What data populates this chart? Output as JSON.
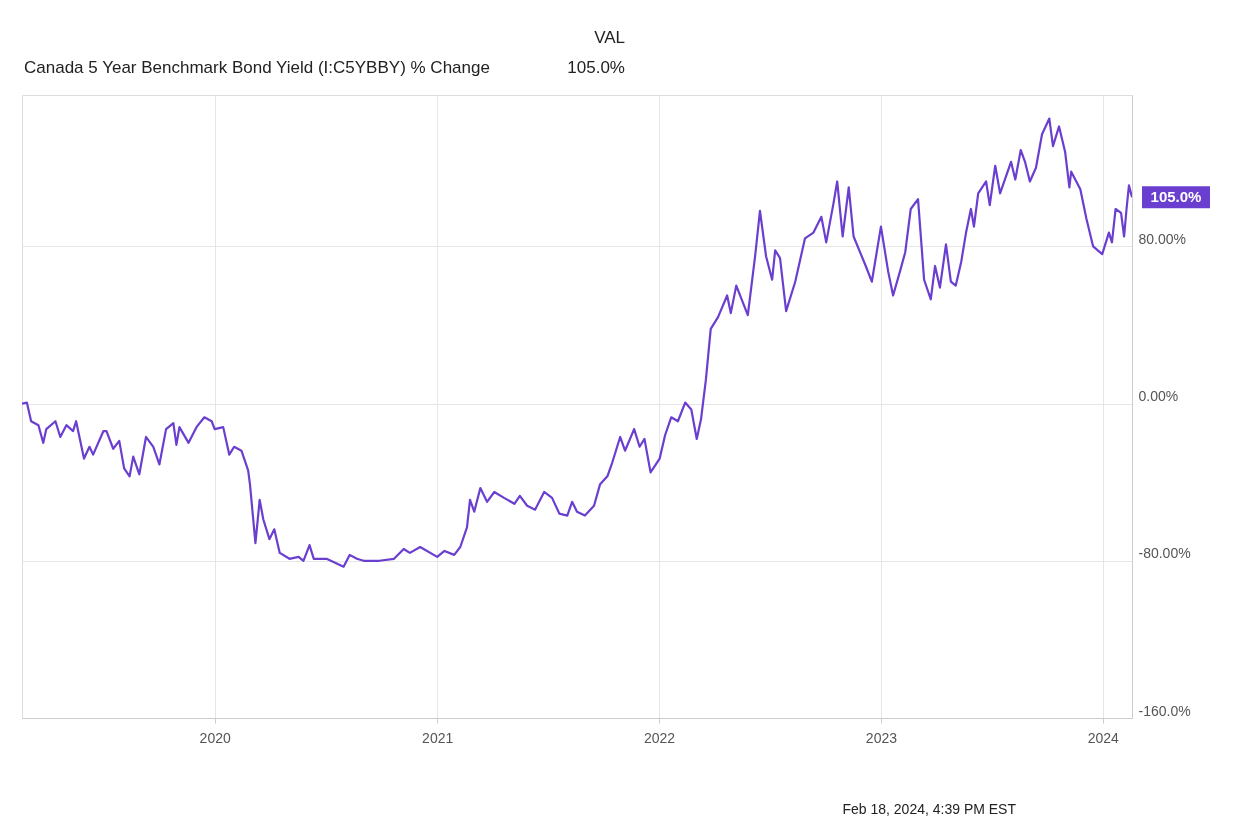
{
  "chart_data": {
    "type": "line",
    "title": "Canada 5 Year Benchmark Bond Yield (I:C5YBBY) % Change",
    "annotations": [
      "VAL",
      "105.0%",
      {
        "text": "105.0%",
        "x": "2024-02-18",
        "y": 105
      },
      "Feb 18, 2024, 4:39 PM EST"
    ],
    "x": [
      "2019-02-18",
      "2019-02-26",
      "2019-03-05",
      "2019-03-17",
      "2019-03-25",
      "2019-03-30",
      "2019-04-14",
      "2019-04-22",
      "2019-05-02",
      "2019-05-13",
      "2019-05-18",
      "2019-05-31",
      "2019-06-09",
      "2019-06-15",
      "2019-07-02",
      "2019-07-07",
      "2019-07-18",
      "2019-07-28",
      "2019-08-05",
      "2019-08-14",
      "2019-08-20",
      "2019-08-30",
      "2019-09-10",
      "2019-09-22",
      "2019-10-02",
      "2019-10-13",
      "2019-10-25",
      "2019-10-30",
      "2019-11-04",
      "2019-11-19",
      "2019-12-02",
      "2019-12-15",
      "2019-12-27",
      "2020-01-01",
      "2020-01-15",
      "2020-01-25",
      "2020-02-02",
      "2020-02-14",
      "2020-02-25",
      "2020-02-28",
      "2020-03-08",
      "2020-03-15",
      "2020-03-21",
      "2020-03-31",
      "2020-04-08",
      "2020-04-17",
      "2020-05-03",
      "2020-05-18",
      "2020-05-26",
      "2020-06-05",
      "2020-06-12",
      "2020-07-03",
      "2020-07-31",
      "2020-08-10",
      "2020-08-22",
      "2020-09-02",
      "2020-09-28",
      "2020-10-22",
      "2020-11-07",
      "2020-11-17",
      "2020-12-04",
      "2021-01-01",
      "2021-01-13",
      "2021-01-29",
      "2021-02-08",
      "2021-02-19",
      "2021-02-24",
      "2021-03-03",
      "2021-03-13",
      "2021-03-24",
      "2021-04-05",
      "2021-04-21",
      "2021-05-08",
      "2021-05-17",
      "2021-05-29",
      "2021-06-11",
      "2021-06-26",
      "2021-07-09",
      "2021-07-21",
      "2021-08-03",
      "2021-08-11",
      "2021-08-19",
      "2021-09-01",
      "2021-09-16",
      "2021-09-26",
      "2021-10-08",
      "2021-10-16",
      "2021-10-29",
      "2021-11-06",
      "2021-11-21",
      "2021-11-30",
      "2021-12-08",
      "2021-12-18",
      "2022-01-02",
      "2022-01-11",
      "2022-01-21",
      "2022-02-01",
      "2022-02-13",
      "2022-02-23",
      "2022-03-04",
      "2022-03-11",
      "2022-03-19",
      "2022-03-27",
      "2022-04-08",
      "2022-04-23",
      "2022-04-29",
      "2022-05-08",
      "2022-05-27",
      "2022-06-08",
      "2022-06-16",
      "2022-06-26",
      "2022-07-06",
      "2022-07-11",
      "2022-07-19",
      "2022-07-29",
      "2022-08-13",
      "2022-08-29",
      "2022-09-12",
      "2022-09-25",
      "2022-10-03",
      "2022-10-15",
      "2022-10-21",
      "2022-10-30",
      "2022-11-09",
      "2022-11-17",
      "2022-12-07",
      "2022-12-17",
      "2023-01-01",
      "2023-01-13",
      "2023-01-21",
      "2023-02-02",
      "2023-02-10",
      "2023-02-19",
      "2023-03-03",
      "2023-03-13",
      "2023-03-24",
      "2023-03-31",
      "2023-04-08",
      "2023-04-18",
      "2023-04-26",
      "2023-05-04",
      "2023-05-13",
      "2023-05-21",
      "2023-05-29",
      "2023-06-03",
      "2023-06-10",
      "2023-06-23",
      "2023-06-29",
      "2023-07-08",
      "2023-07-16",
      "2023-08-03",
      "2023-08-10",
      "2023-08-19",
      "2023-08-26",
      "2023-09-03",
      "2023-09-13",
      "2023-09-23",
      "2023-10-05",
      "2023-10-11",
      "2023-10-21",
      "2023-10-31",
      "2023-11-07",
      "2023-11-10",
      "2023-11-25",
      "2023-12-05",
      "2023-12-16",
      "2023-12-31",
      "2024-01-11",
      "2024-01-16",
      "2024-01-22",
      "2024-01-31",
      "2024-02-05",
      "2024-02-09",
      "2024-02-13",
      "2024-02-18"
    ],
    "series": [
      {
        "color": "#6a3fd0",
        "values": [
          0,
          0.5,
          -9,
          -11,
          -20,
          -13,
          -9,
          -17,
          -11,
          -14,
          -9,
          -28,
          -22,
          -26,
          -14,
          -14,
          -23,
          -19,
          -33,
          -37,
          -27,
          -36,
          -17,
          -22,
          -31,
          -13,
          -10,
          -21,
          -12,
          -20,
          -12,
          -7,
          -9,
          -13,
          -12,
          -26,
          -22,
          -24,
          -34,
          -41,
          -71,
          -49,
          -59,
          -69,
          -64,
          -76,
          -79,
          -78,
          -80,
          -72,
          -79,
          -79,
          -83,
          -77,
          -79,
          -80,
          -80,
          -79,
          -74,
          -76,
          -73,
          -78,
          -75,
          -77,
          -73,
          -63,
          -49,
          -55,
          -43,
          -50,
          -45,
          -48,
          -51,
          -47,
          -52,
          -54,
          -45,
          -48,
          -56,
          -57,
          -50,
          -55,
          -57,
          -52,
          -41,
          -37,
          -30,
          -17,
          -24,
          -13,
          -22,
          -18,
          -35,
          -28,
          -16,
          -7,
          -9,
          0.5,
          -3,
          -18,
          -8,
          12,
          38,
          44,
          55,
          46,
          60,
          45,
          75,
          98,
          75,
          63,
          78,
          74,
          47,
          62,
          84,
          87,
          95,
          82,
          102,
          113,
          85,
          110,
          85,
          70,
          62,
          90,
          67,
          55,
          68,
          77,
          99,
          104,
          63,
          53,
          70,
          59,
          81,
          62,
          60,
          72,
          87,
          99,
          90,
          107,
          113,
          101,
          121,
          107,
          123,
          114,
          129,
          123,
          113,
          120,
          137,
          145,
          131,
          141,
          128,
          110,
          118,
          109,
          94,
          80,
          76,
          87,
          82,
          99,
          97,
          85,
          99,
          111,
          105
        ]
      }
    ],
    "xlim": [
      "2019-02-18",
      "2024-02-18"
    ],
    "xticks": [
      "2020",
      "2021",
      "2022",
      "2023",
      "2024"
    ],
    "ylim": [
      -160,
      157
    ],
    "yticks": [
      {
        "value": -160,
        "label": "-160.0%"
      },
      {
        "value": -80,
        "label": "-80.00%"
      },
      {
        "value": 0,
        "label": "0.00%"
      },
      {
        "value": 80,
        "label": "80.00%"
      }
    ],
    "grid": true
  }
}
